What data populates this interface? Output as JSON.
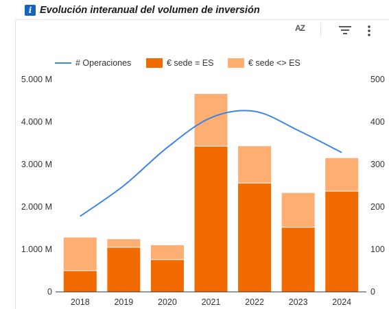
{
  "header": {
    "info_icon": "i",
    "title": "Evolución interanual del volumen de inversión"
  },
  "toolbar": {
    "sort_icon_text": "AZ",
    "icons": [
      "sort-az-icon",
      "filter-icon",
      "more-vert-icon"
    ]
  },
  "colors": {
    "line": "#3c84e6",
    "bar_es": "#f26b00",
    "bar_other": "#fcae73",
    "axis": "#333333",
    "grid": "#e6e6e6"
  },
  "chart_data": {
    "type": "bar",
    "stacked": true,
    "categories": [
      "2018",
      "2019",
      "2020",
      "2021",
      "2022",
      "2023",
      "2024"
    ],
    "series": [
      {
        "name": "€ sede = ES",
        "type": "bar",
        "axis": "left",
        "values": [
          500,
          1050,
          760,
          3430,
          2560,
          1520,
          2370
        ]
      },
      {
        "name": "€ sede <> ES",
        "type": "bar",
        "axis": "left",
        "values": [
          780,
          190,
          340,
          1230,
          870,
          810,
          780
        ]
      },
      {
        "name": "# Operaciones",
        "type": "line",
        "axis": "right",
        "smooth": true,
        "values": [
          178,
          250,
          340,
          410,
          425,
          380,
          328
        ]
      }
    ],
    "y_left": {
      "range": [
        0,
        5000
      ],
      "ticks": [
        0,
        1000,
        2000,
        3000,
        4000,
        5000
      ],
      "tick_labels": [
        "0",
        "1.000 M",
        "2.000 M",
        "3.000 M",
        "4.000 M",
        "5.000 M"
      ]
    },
    "y_right": {
      "range": [
        0,
        500
      ],
      "ticks": [
        0,
        100,
        200,
        300,
        400,
        500
      ],
      "tick_labels": [
        "0",
        "100",
        "200",
        "300",
        "400",
        "500"
      ]
    },
    "legend": {
      "position": "top",
      "items": [
        "# Operaciones",
        "€ sede = ES",
        "€ sede <> ES"
      ]
    },
    "grid": false
  }
}
